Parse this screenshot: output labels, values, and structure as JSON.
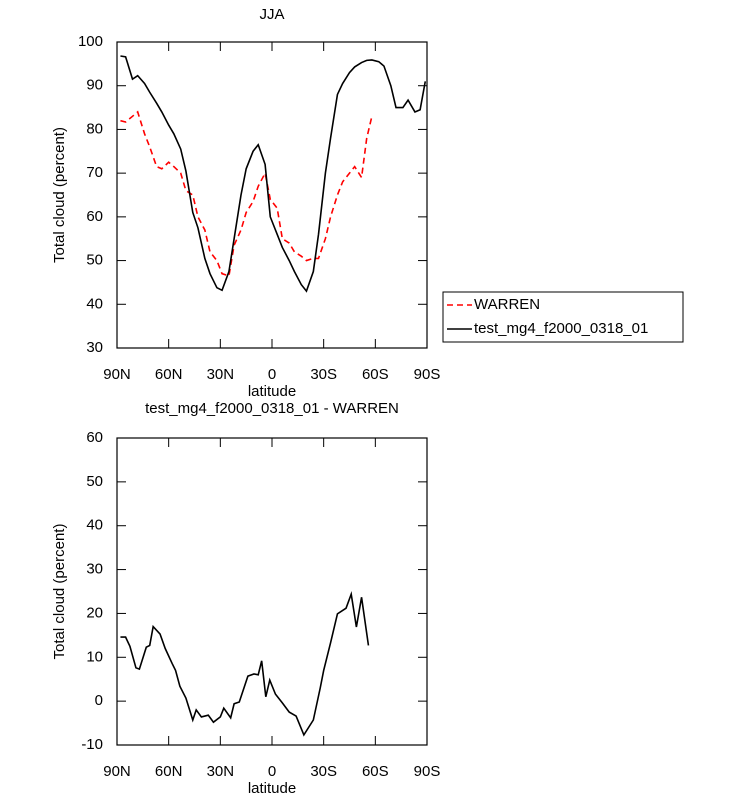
{
  "chart_data": [
    {
      "type": "line",
      "title": "JJA",
      "xlabel": "latitude",
      "ylabel": "Total cloud (percent)",
      "x": [
        88,
        85,
        81,
        78,
        74,
        71,
        67,
        64,
        60,
        57,
        53,
        50,
        46,
        43,
        39,
        36,
        32,
        29,
        25,
        22,
        18,
        15,
        11,
        8,
        4,
        1,
        -3,
        -6,
        -10,
        -13,
        -17,
        -20,
        -24,
        -27,
        -31,
        -34,
        -38,
        -41,
        -45,
        -48,
        -52,
        -55,
        -58,
        -62,
        -65,
        -69,
        -72,
        -76,
        -79,
        -83,
        -86,
        -89
      ],
      "series": [
        {
          "name": "WARREN",
          "color": "#ff0000",
          "linestyle": "dashed",
          "values": [
            82,
            81.7,
            83,
            84,
            79,
            76,
            71.5,
            71,
            72.5,
            71.5,
            70,
            66,
            65,
            60,
            57,
            52,
            50,
            47,
            46.5,
            53.5,
            57,
            61,
            63.5,
            67,
            70,
            64,
            62,
            55,
            54,
            52,
            51,
            50,
            50.5,
            50.5,
            55,
            60,
            65,
            68,
            70,
            71.5,
            69,
            78,
            83,
            null,
            null,
            null,
            null,
            null,
            null,
            null,
            null,
            null
          ]
        },
        {
          "name": "test_mg4_f2000_0318_01",
          "color": "#000000",
          "linestyle": "solid",
          "values": [
            96.8,
            96.6,
            91.5,
            92.3,
            90.5,
            88.5,
            86,
            84,
            81,
            79,
            75.5,
            70.5,
            61,
            57.5,
            50.5,
            47,
            43.8,
            43.2,
            47.5,
            55,
            65,
            71,
            75,
            76.5,
            72,
            60,
            56,
            53,
            50,
            47.5,
            44.5,
            43,
            47.5,
            56,
            70,
            78,
            88,
            90.5,
            93,
            94.3,
            95.3,
            95.8,
            95.9,
            95.5,
            94.5,
            90,
            85,
            85,
            86.7,
            84,
            84.5,
            91
          ]
        }
      ],
      "xlim": [
        90,
        -90
      ],
      "xticks": [
        {
          "value": 90,
          "label": "90N"
        },
        {
          "value": 60,
          "label": "60N"
        },
        {
          "value": 30,
          "label": "30N"
        },
        0,
        {
          "value": -30,
          "label": "30S"
        },
        {
          "value": -60,
          "label": "60S"
        },
        {
          "value": -90,
          "label": "90S"
        }
      ],
      "ylim": [
        30,
        100
      ],
      "yticks": [
        30,
        40,
        50,
        60,
        70,
        80,
        90,
        100
      ]
    },
    {
      "type": "line",
      "title": "test_mg4_f2000_0318_01 - WARREN",
      "xlabel": "latitude",
      "ylabel": "Total cloud (percent)",
      "x": [
        88,
        85,
        82.5,
        79,
        77,
        73,
        71,
        69,
        65,
        62,
        58,
        56,
        53.5,
        50,
        46,
        44,
        41,
        37,
        34,
        30,
        28,
        24,
        22,
        19,
        14,
        10.5,
        8,
        6,
        3.6,
        1.3,
        -2,
        -6,
        -10,
        -14,
        -18.5,
        -24,
        -28,
        -30,
        -34,
        -38,
        -43,
        -46,
        -49,
        -52,
        -56
      ],
      "series": [
        {
          "color": "#000000",
          "linestyle": "solid",
          "values": [
            14.6,
            14.6,
            12.5,
            7.6,
            7.3,
            12.3,
            12.7,
            17,
            15.3,
            12,
            8.6,
            7,
            3.4,
            0.7,
            -4.3,
            -2,
            -3.6,
            -3.2,
            -4.8,
            -3.6,
            -1.6,
            -3.8,
            -0.6,
            -0.2,
            5.7,
            6.2,
            6,
            9.2,
            1,
            4.8,
            1.6,
            -0.4,
            -2.5,
            -3.4,
            -7.7,
            -4.3,
            3,
            7,
            13.3,
            19.9,
            21.2,
            24.4,
            16.9,
            23.7,
            12.7
          ]
        }
      ],
      "xlim": [
        90,
        -90
      ],
      "xticks": [
        {
          "value": 90,
          "label": "90N"
        },
        {
          "value": 60,
          "label": "60N"
        },
        {
          "value": 30,
          "label": "30N"
        },
        0,
        {
          "value": -30,
          "label": "30S"
        },
        {
          "value": -60,
          "label": "60S"
        },
        {
          "value": -90,
          "label": "90S"
        }
      ],
      "ylim": [
        -10,
        60
      ],
      "yticks": [
        -10,
        0,
        10,
        20,
        30,
        40,
        50,
        60
      ]
    }
  ]
}
